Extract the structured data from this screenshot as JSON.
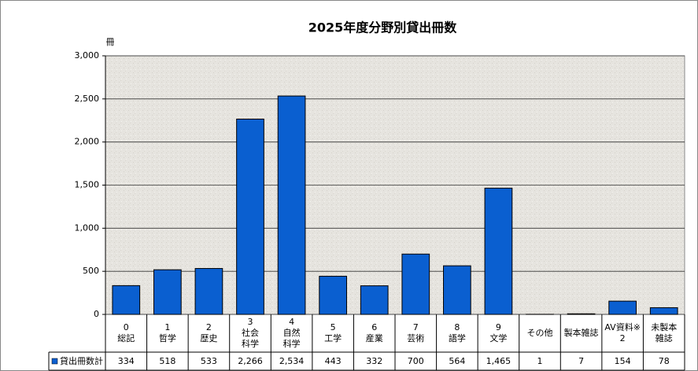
{
  "chart_data": {
    "type": "bar",
    "title": "2025年度分野別貸出冊数",
    "y_unit": "冊",
    "categories": [
      [
        "0",
        "総記"
      ],
      [
        "1",
        "哲学"
      ],
      [
        "2",
        "歴史"
      ],
      [
        "3",
        "社会",
        "科学"
      ],
      [
        "4",
        "自然",
        "科学"
      ],
      [
        "5",
        "工学"
      ],
      [
        "6",
        "産業"
      ],
      [
        "7",
        "芸術"
      ],
      [
        "8",
        "語学"
      ],
      [
        "9",
        "文学"
      ],
      [
        "その他"
      ],
      [
        "製本雑誌"
      ],
      [
        "AV資料※",
        "2"
      ],
      [
        "未製本",
        "雑誌"
      ]
    ],
    "series": [
      {
        "name": "貸出冊数計",
        "color": "#0a5fd0",
        "values": [
          334,
          518,
          533,
          2266,
          2534,
          443,
          332,
          700,
          564,
          1465,
          1,
          7,
          154,
          78
        ],
        "value_labels": [
          "334",
          "518",
          "533",
          "2,266",
          "2,534",
          "443",
          "332",
          "700",
          "564",
          "1,465",
          "1",
          "7",
          "154",
          "78"
        ]
      }
    ],
    "ylim": [
      0,
      3000
    ],
    "yticks": [
      0,
      500,
      {
        "value": 1000,
        "label": "1,000"
      },
      {
        "value": 1500,
        "label": "1,500"
      },
      {
        "value": 2000,
        "label": "2,000"
      },
      {
        "value": 2500,
        "label": "2,500"
      },
      {
        "value": 3000,
        "label": "3,000"
      }
    ],
    "grid": true
  }
}
